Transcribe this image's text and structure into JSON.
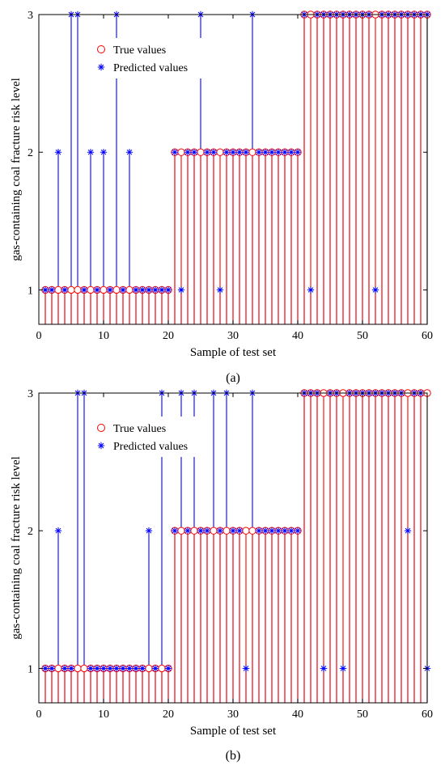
{
  "chart_data": [
    {
      "type": "stem",
      "panel_label": "(a)",
      "xlabel": "Sample of test set",
      "ylabel": "gas-containing coal fracture risk level",
      "xlim": [
        0,
        60
      ],
      "ylim": [
        0.75,
        3
      ],
      "xticks": [
        0,
        10,
        20,
        30,
        40,
        50,
        60
      ],
      "yticks": [
        1,
        2,
        3
      ],
      "legend_position": "top-left",
      "x": [
        1,
        2,
        3,
        4,
        5,
        6,
        7,
        8,
        9,
        10,
        11,
        12,
        13,
        14,
        15,
        16,
        17,
        18,
        19,
        20,
        21,
        22,
        23,
        24,
        25,
        26,
        27,
        28,
        29,
        30,
        31,
        32,
        33,
        34,
        35,
        36,
        37,
        38,
        39,
        40,
        41,
        42,
        43,
        44,
        45,
        46,
        47,
        48,
        49,
        50,
        51,
        52,
        53,
        54,
        55,
        56,
        57,
        58,
        59,
        60
      ],
      "series": [
        {
          "name": "True values",
          "marker": "circle",
          "color": "#ff0000",
          "values": [
            1,
            1,
            1,
            1,
            1,
            1,
            1,
            1,
            1,
            1,
            1,
            1,
            1,
            1,
            1,
            1,
            1,
            1,
            1,
            1,
            2,
            2,
            2,
            2,
            2,
            2,
            2,
            2,
            2,
            2,
            2,
            2,
            2,
            2,
            2,
            2,
            2,
            2,
            2,
            2,
            3,
            3,
            3,
            3,
            3,
            3,
            3,
            3,
            3,
            3,
            3,
            3,
            3,
            3,
            3,
            3,
            3,
            3,
            3,
            3
          ]
        },
        {
          "name": "Predicted values",
          "marker": "asterisk",
          "color": "#0000ff",
          "values": [
            1,
            1,
            2,
            1,
            3,
            3,
            1,
            2,
            1,
            2,
            1,
            3,
            1,
            2,
            1,
            1,
            1,
            1,
            1,
            1,
            2,
            1,
            2,
            2,
            3,
            2,
            2,
            1,
            2,
            2,
            2,
            2,
            3,
            2,
            2,
            2,
            2,
            2,
            2,
            2,
            3,
            1,
            3,
            3,
            3,
            3,
            3,
            3,
            3,
            3,
            3,
            1,
            3,
            3,
            3,
            3,
            3,
            3,
            3,
            3
          ]
        }
      ]
    },
    {
      "type": "stem",
      "panel_label": "(b)",
      "xlabel": "Sample of test set",
      "ylabel": "gas-containing coal fracture risk level",
      "xlim": [
        0,
        60
      ],
      "ylim": [
        0.75,
        3
      ],
      "xticks": [
        0,
        10,
        20,
        30,
        40,
        50,
        60
      ],
      "yticks": [
        1,
        2,
        3
      ],
      "legend_position": "top-left",
      "x": [
        1,
        2,
        3,
        4,
        5,
        6,
        7,
        8,
        9,
        10,
        11,
        12,
        13,
        14,
        15,
        16,
        17,
        18,
        19,
        20,
        21,
        22,
        23,
        24,
        25,
        26,
        27,
        28,
        29,
        30,
        31,
        32,
        33,
        34,
        35,
        36,
        37,
        38,
        39,
        40,
        41,
        42,
        43,
        44,
        45,
        46,
        47,
        48,
        49,
        50,
        51,
        52,
        53,
        54,
        55,
        56,
        57,
        58,
        59,
        60
      ],
      "series": [
        {
          "name": "True values",
          "marker": "circle",
          "color": "#ff0000",
          "values": [
            1,
            1,
            1,
            1,
            1,
            1,
            1,
            1,
            1,
            1,
            1,
            1,
            1,
            1,
            1,
            1,
            1,
            1,
            1,
            1,
            2,
            2,
            2,
            2,
            2,
            2,
            2,
            2,
            2,
            2,
            2,
            2,
            2,
            2,
            2,
            2,
            2,
            2,
            2,
            2,
            3,
            3,
            3,
            3,
            3,
            3,
            3,
            3,
            3,
            3,
            3,
            3,
            3,
            3,
            3,
            3,
            3,
            3,
            3,
            3
          ]
        },
        {
          "name": "Predicted values",
          "marker": "asterisk",
          "color": "#0000ff",
          "values": [
            1,
            1,
            2,
            1,
            1,
            3,
            3,
            1,
            1,
            1,
            1,
            1,
            1,
            1,
            1,
            1,
            2,
            1,
            3,
            1,
            2,
            3,
            2,
            3,
            2,
            2,
            3,
            2,
            3,
            2,
            2,
            1,
            3,
            2,
            2,
            2,
            2,
            2,
            2,
            2,
            3,
            3,
            3,
            1,
            3,
            3,
            1,
            3,
            3,
            3,
            3,
            3,
            3,
            3,
            3,
            3,
            2,
            3,
            3,
            1
          ]
        }
      ]
    }
  ]
}
